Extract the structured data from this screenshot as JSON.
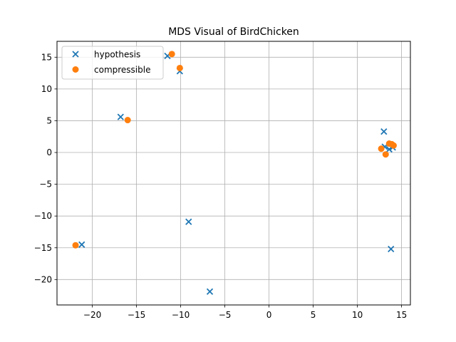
{
  "chart_data": {
    "type": "scatter",
    "title": "MDS Visual of BirdChicken",
    "xlabel": "",
    "ylabel": "",
    "xlim": [
      -24,
      16
    ],
    "ylim": [
      -24,
      17.5
    ],
    "xticks": [
      -20,
      -15,
      -10,
      -5,
      0,
      5,
      10,
      15
    ],
    "yticks": [
      -20,
      -15,
      -10,
      -5,
      0,
      5,
      10,
      15
    ],
    "grid": true,
    "legend_position": "top-left",
    "series": [
      {
        "name": "hypothesis",
        "marker": "x",
        "color": "#1f77b4",
        "points": [
          [
            -11.5,
            15.2
          ],
          [
            -10.1,
            12.8
          ],
          [
            -16.8,
            5.6
          ],
          [
            -9.1,
            -10.9
          ],
          [
            -21.2,
            -14.5
          ],
          [
            -6.7,
            -21.9
          ],
          [
            13.0,
            3.3
          ],
          [
            13.1,
            0.9
          ],
          [
            13.6,
            0.5
          ],
          [
            14.0,
            0.8
          ],
          [
            13.8,
            -15.2
          ]
        ]
      },
      {
        "name": "compressible",
        "marker": "o",
        "color": "#ff7f0e",
        "points": [
          [
            -11.0,
            15.5
          ],
          [
            -10.1,
            13.3
          ],
          [
            -16.0,
            5.1
          ],
          [
            -21.9,
            -14.6
          ],
          [
            12.7,
            0.6
          ],
          [
            13.2,
            -0.3
          ],
          [
            13.6,
            1.4
          ],
          [
            14.1,
            1.1
          ],
          [
            13.9,
            1.3
          ]
        ]
      }
    ]
  }
}
